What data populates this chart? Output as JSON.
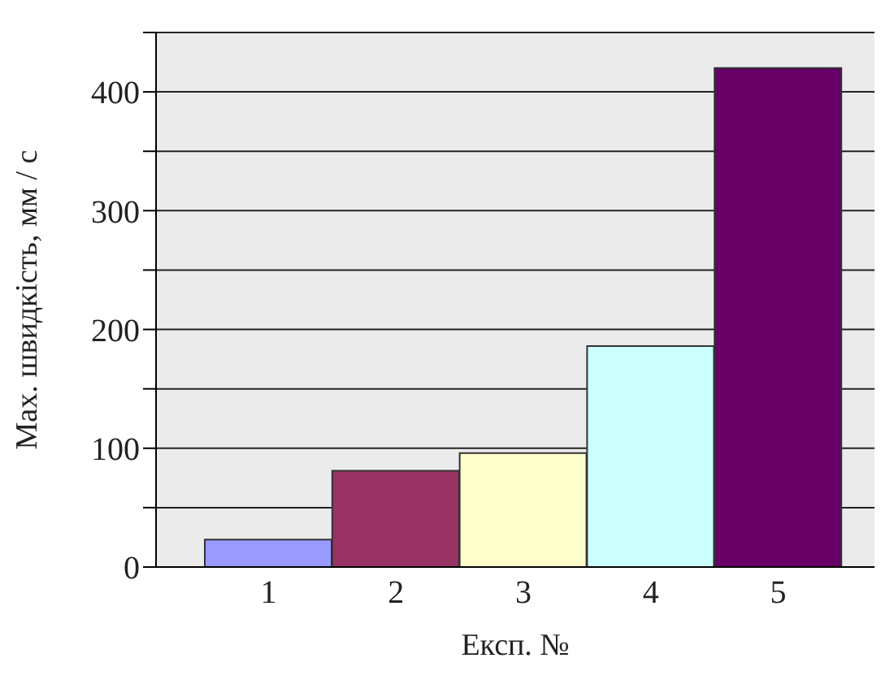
{
  "chart_data": {
    "type": "bar",
    "xlabel": "Експ. №",
    "ylabel": "Max. швидкість, мм / с",
    "categories": [
      "1",
      "2",
      "3",
      "4",
      "5"
    ],
    "values": [
      23,
      81,
      96,
      186,
      420
    ],
    "colors": [
      "#9999ff",
      "#993366",
      "#ffffcc",
      "#ccffff",
      "#660066"
    ],
    "ylim": [
      0,
      450
    ],
    "yticks": [
      0,
      {
        "value": 50,
        "label": null
      },
      100,
      {
        "value": 150,
        "label": null
      },
      200,
      {
        "value": 250,
        "label": null
      },
      300,
      {
        "value": 350,
        "label": null
      },
      400,
      {
        "value": 450,
        "label": null
      }
    ],
    "grid": "y"
  }
}
